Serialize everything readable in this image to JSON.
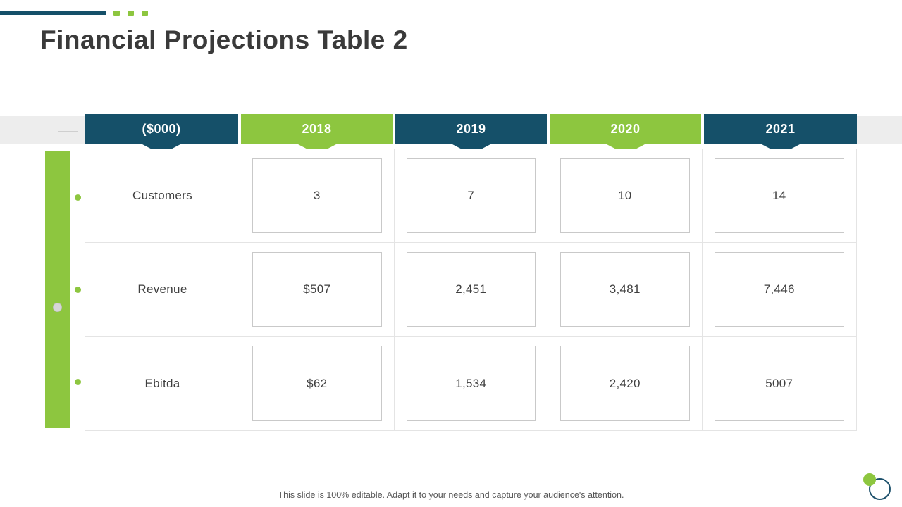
{
  "title": "Financial Projections Table 2",
  "footer": "This slide is 100% editable. Adapt it to your needs and capture your audience's attention.",
  "colors": {
    "teal": "#155069",
    "green": "#8dc63f",
    "title_text": "#3a3a3a",
    "band_gray": "#ededed"
  },
  "chart_data": {
    "type": "table",
    "title": "Financial Projections Table 2",
    "columns": [
      "($000)",
      "2018",
      "2019",
      "2020",
      "2021"
    ],
    "rows": [
      {
        "label": "Customers",
        "values": [
          "3",
          "7",
          "10",
          "14"
        ]
      },
      {
        "label": "Revenue",
        "values": [
          "$507",
          "2,451",
          "3,481",
          "7,446"
        ]
      },
      {
        "label": "Ebitda",
        "values": [
          "$62",
          "1,534",
          "2,420",
          "5007"
        ]
      }
    ]
  }
}
